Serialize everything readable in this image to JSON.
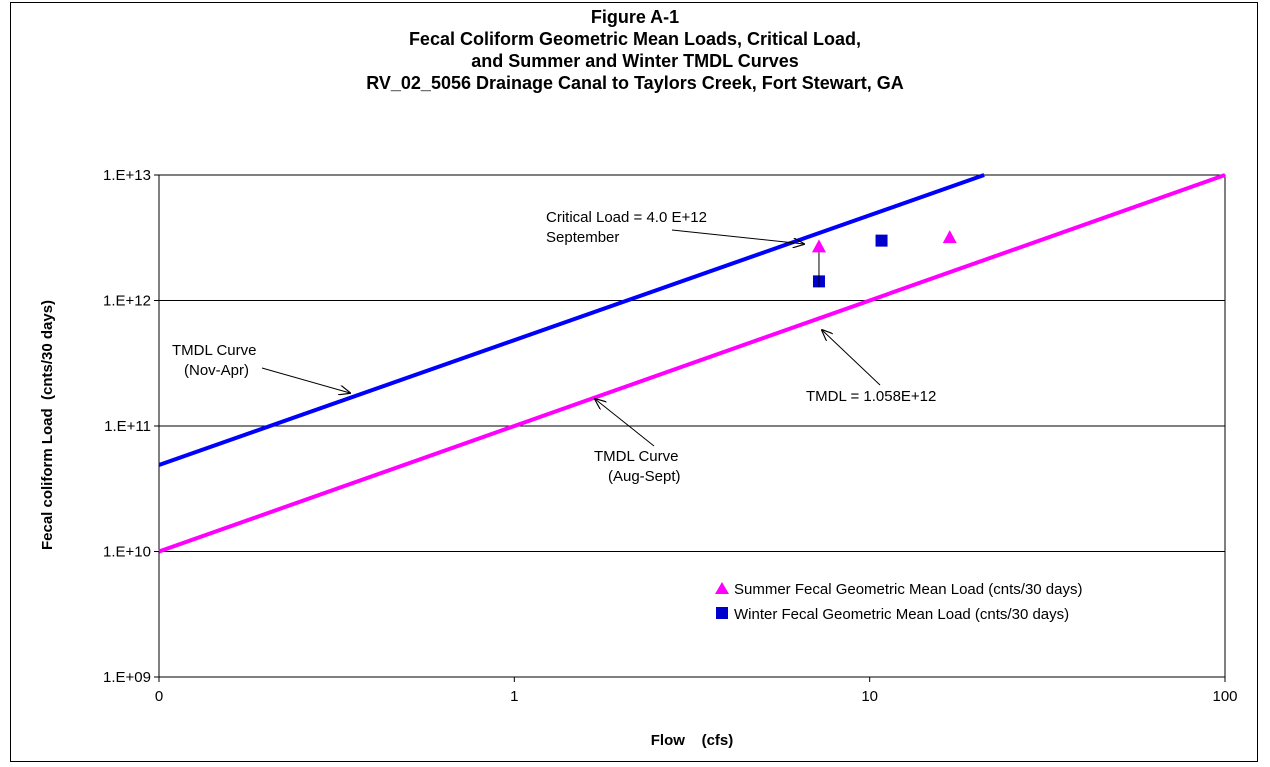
{
  "chart_data": {
    "type": "scatter",
    "title_lines": [
      "Figure A-1",
      "Fecal Coliform Geometric Mean Loads,  Critical Load,",
      "and Summer and Winter TMDL Curves",
      "RV_02_5056 Drainage Canal to Taylors Creek, Fort Stewart, GA"
    ],
    "xlabel": "Flow    (cfs)",
    "ylabel": "Fecal coliform Load  (cnts/30 days)",
    "x_scale": "log",
    "y_scale": "log",
    "xlim": [
      0.1,
      100
    ],
    "ylim": [
      1000000000,
      10000000000000
    ],
    "x_tick_values": [
      0.1,
      1,
      10,
      100
    ],
    "x_tick_labels": [
      "0",
      "1",
      "10",
      "100"
    ],
    "y_tick_values": [
      1000000000,
      10000000000,
      100000000000,
      1000000000000,
      10000000000000
    ],
    "y_tick_labels": [
      "1.E+09",
      "1.E+10",
      "1.E+11",
      "1.E+12",
      "1.E+13"
    ],
    "grid": "horizontal",
    "lines": [
      {
        "id": "winter",
        "color": "#0000ff",
        "x": [
          0.1,
          21
        ],
        "y": [
          48900000000,
          10000000000000
        ]
      },
      {
        "id": "summer",
        "color": "#ff00ff",
        "x": [
          0.1,
          100
        ],
        "y": [
          10000000000,
          10000000000000
        ]
      }
    ],
    "series": [
      {
        "name": "Summer Fecal Geometric Mean Load (cnts/30 days)",
        "marker": "triangle",
        "color": "#ff00ff",
        "x": [
          7.2,
          16.8
        ],
        "y": [
          2700000000000,
          3200000000000
        ]
      },
      {
        "name": "Winter Fecal Geometric Mean Load (cnts/30 days)",
        "marker": "square",
        "color": "#0000cc",
        "x": [
          7.2,
          10.8
        ],
        "y": [
          1420000000000,
          3000000000000
        ]
      }
    ],
    "legend_position": "bottom-right",
    "annotations": {
      "critical_load": [
        "Critical Load = 4.0 E+12",
        "September"
      ],
      "tmdl_value": [
        "TMDL = 1.058E+12"
      ],
      "winter_curve": [
        "TMDL Curve",
        "(Nov-Apr)"
      ],
      "summer_curve": [
        "TMDL Curve",
        "(Aug-Sept)"
      ]
    }
  }
}
